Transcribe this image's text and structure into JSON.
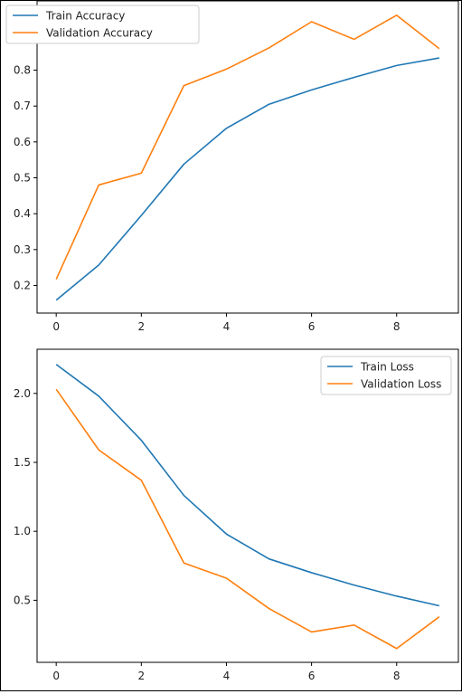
{
  "chart_data": [
    {
      "type": "line",
      "title": "",
      "xlabel": "",
      "ylabel": "",
      "x": [
        0,
        1,
        2,
        3,
        4,
        5,
        6,
        7,
        8,
        9
      ],
      "xlim": [
        -0.45,
        9.45
      ],
      "ylim": [
        0.123,
        0.993
      ],
      "xticks": [
        0,
        2,
        4,
        6,
        8
      ],
      "yticks": [
        0.2,
        0.3,
        0.4,
        0.5,
        0.6,
        0.7,
        0.8,
        0.9
      ],
      "ytick_labels": [
        "0.2",
        "0.3",
        "0.4",
        "0.5",
        "0.6",
        "0.7",
        "0.8",
        "0.9"
      ],
      "xtick_labels": [
        "0",
        "2",
        "4",
        "6",
        "8"
      ],
      "grid": false,
      "legend_position": "top-left",
      "series": [
        {
          "name": "Train Accuracy",
          "color": "#1f77b4",
          "values": [
            0.159,
            0.257,
            0.395,
            0.538,
            0.638,
            0.705,
            0.745,
            0.78,
            0.813,
            0.834
          ]
        },
        {
          "name": "Validation Accuracy",
          "color": "#ff7f0e",
          "values": [
            0.217,
            0.48,
            0.513,
            0.757,
            0.803,
            0.862,
            0.935,
            0.886,
            0.953,
            0.86
          ]
        }
      ]
    },
    {
      "type": "line",
      "title": "",
      "xlabel": "",
      "ylabel": "",
      "x": [
        0,
        1,
        2,
        3,
        4,
        5,
        6,
        7,
        8,
        9
      ],
      "xlim": [
        -0.45,
        9.45
      ],
      "ylim": [
        0.05,
        2.32
      ],
      "xticks": [
        0,
        2,
        4,
        6,
        8
      ],
      "yticks": [
        0.5,
        1.0,
        1.5,
        2.0
      ],
      "ytick_labels": [
        "0.5",
        "1.0",
        "1.5",
        "2.0"
      ],
      "xtick_labels": [
        "0",
        "2",
        "4",
        "6",
        "8"
      ],
      "grid": false,
      "legend_position": "top-right",
      "series": [
        {
          "name": "Train Loss",
          "color": "#1f77b4",
          "values": [
            2.21,
            1.98,
            1.66,
            1.26,
            0.98,
            0.8,
            0.7,
            0.61,
            0.53,
            0.46
          ]
        },
        {
          "name": "Validation Loss",
          "color": "#ff7f0e",
          "values": [
            2.03,
            1.59,
            1.37,
            0.77,
            0.66,
            0.44,
            0.27,
            0.32,
            0.15,
            0.38
          ]
        }
      ]
    }
  ]
}
